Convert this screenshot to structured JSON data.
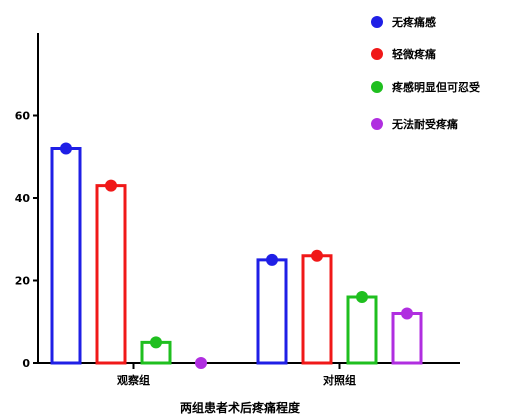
{
  "chart_data": {
    "type": "bar",
    "title": "",
    "xlabel": "两组患者术后疼痛程度",
    "ylabel": "",
    "ylim": [
      0,
      80
    ],
    "yticks": [
      0,
      20,
      40,
      60
    ],
    "ytick_labels": [
      "0",
      "20",
      "40",
      "60"
    ],
    "grid": false,
    "legend_position": "top-right",
    "categories": [
      "观察组",
      "对照组"
    ],
    "series": [
      {
        "name": "无疼痛感",
        "color": "#1f1fe6",
        "values": [
          52,
          25
        ]
      },
      {
        "name": "轻微疼痛",
        "color": "#f01818",
        "values": [
          43,
          26
        ]
      },
      {
        "name": "疼感明显但可忍受",
        "color": "#1fbf1f",
        "values": [
          5,
          16
        ]
      },
      {
        "name": "无法耐受疼痛",
        "color": "#b02ee0",
        "values": [
          0,
          12
        ]
      }
    ]
  }
}
